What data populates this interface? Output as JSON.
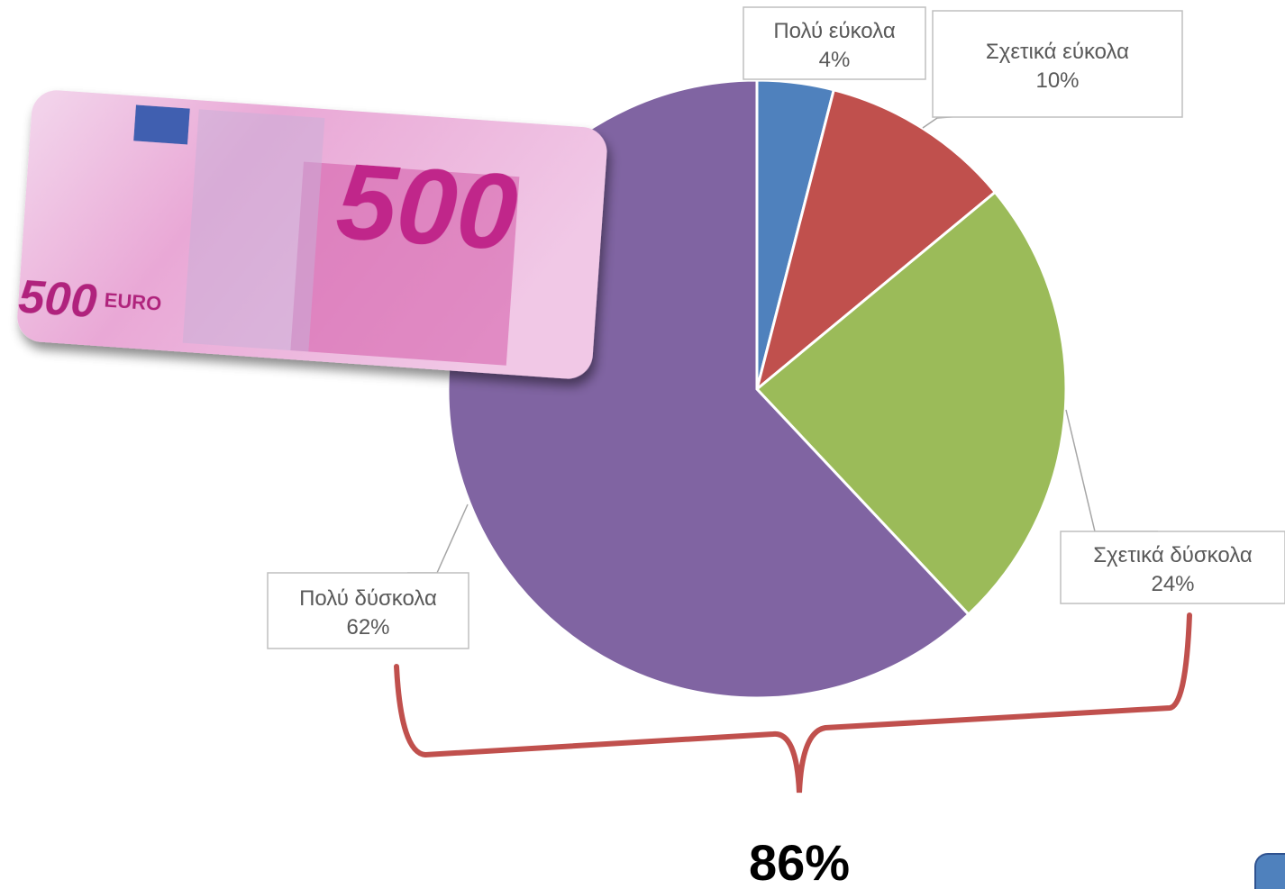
{
  "chart_data": {
    "type": "pie",
    "categories": [
      "Πολύ εύκολα",
      "Σχετικά εύκολα",
      "Σχετικά δύσκολα",
      "Πολύ δύσκολα"
    ],
    "values": [
      4,
      10,
      24,
      62
    ],
    "value_labels": [
      "4%",
      "10%",
      "24%",
      "62%"
    ],
    "colors": [
      "#4f81bd",
      "#c0504d",
      "#9bbb59",
      "#8064a2"
    ],
    "annotation": "86%"
  },
  "banknote": {
    "denomination": "500",
    "currency": "EURO"
  }
}
